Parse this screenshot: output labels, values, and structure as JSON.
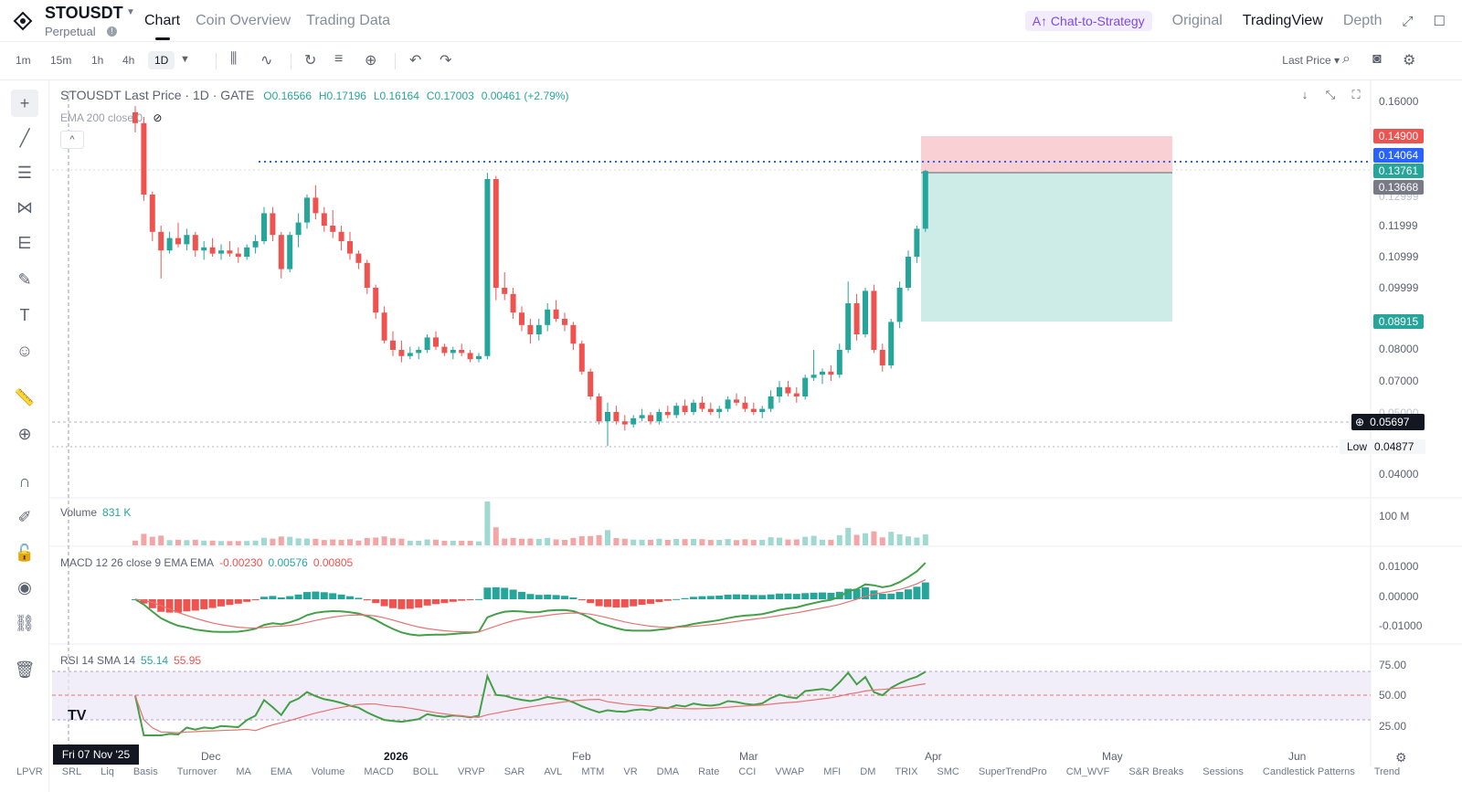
{
  "header": {
    "symbol": "STOUSDT",
    "contract_type": "Perpetual",
    "tabs": [
      {
        "label": "Chart"
      },
      {
        "label": "Coin Overview"
      },
      {
        "label": "Trading Data"
      }
    ],
    "ai_button": "Chat-to-Strategy",
    "view_modes": [
      "Original",
      "TradingView",
      "Depth"
    ]
  },
  "toolbar": {
    "timeframes": [
      "1m",
      "15m",
      "1h",
      "4h",
      "1D"
    ],
    "price_type": "Last Price"
  },
  "legend": {
    "title": "STOUSDT Last Price · 1D · GATE",
    "open": "O0.16566",
    "high": "H0.17196",
    "low": "L0.16164",
    "close": "C0.17003",
    "change": "0.00461 (+2.79%)",
    "ema": "EMA 200 close 0"
  },
  "volume_pane": {
    "label": "Volume",
    "value": "831 K"
  },
  "macd_pane": {
    "label": "MACD 12 26 close 9 EMA EMA",
    "v1": "-0.00230",
    "v2": "0.00576",
    "v3": "0.00805"
  },
  "rsi_pane": {
    "label": "RSI 14 SMA 14",
    "v1": "55.14",
    "v2": "55.95"
  },
  "price_axis": [
    "0.16000",
    "0.11999",
    "0.10999",
    "0.09999",
    "0.08000",
    "0.07000",
    "0.04000"
  ],
  "price_axis_partial": [
    "0.12999",
    "0.05000"
  ],
  "price_tags": {
    "stop": "0.14900",
    "blue": "0.14064",
    "green": "0.13761",
    "gray": "0.13668",
    "target": "0.08915",
    "current": "0.05697",
    "low_label": "Low",
    "low_value": "0.04877"
  },
  "volume_axis": "100 M",
  "macd_axis": [
    "0.01000",
    "0.00000",
    "-0.01000"
  ],
  "rsi_axis": [
    "75.00",
    "50.00",
    "25.00"
  ],
  "time_axis": {
    "labels": [
      "Dec",
      "2026",
      "Feb",
      "Mar",
      "Apr",
      "May",
      "Jun"
    ],
    "crosshair_date": "Fri 07 Nov '25"
  },
  "indicators_bar": [
    "LPVR",
    "SRL",
    "Liq",
    "Basis",
    "Turnover",
    "MA",
    "EMA",
    "Volume",
    "MACD",
    "BOLL",
    "VRVP",
    "SAR",
    "AVL",
    "MTM",
    "VR",
    "DMA",
    "Rate",
    "CCI",
    "VWAP",
    "MFI",
    "DM",
    "TRIX",
    "SMC",
    "SuperTrendPro",
    "CM_WVF",
    "S&R Breaks",
    "Sessions",
    "Candlestick Patterns",
    "Trend"
  ],
  "colors": {
    "up": "#26a69a",
    "down": "#ef5350",
    "accent": "#2962ff",
    "macd_line": "#43a047",
    "signal": "#e57373"
  },
  "chart_data": {
    "type": "candlestick",
    "symbol": "STOUSDT",
    "timeframe": "1D",
    "candles": [
      [
        0.1565,
        0.1585,
        0.15,
        0.153
      ],
      [
        0.153,
        0.155,
        0.128,
        0.13
      ],
      [
        0.13,
        0.131,
        0.115,
        0.118
      ],
      [
        0.118,
        0.12,
        0.103,
        0.112
      ],
      [
        0.112,
        0.118,
        0.111,
        0.116
      ],
      [
        0.116,
        0.121,
        0.113,
        0.114
      ],
      [
        0.114,
        0.119,
        0.112,
        0.117
      ],
      [
        0.117,
        0.118,
        0.11,
        0.112
      ],
      [
        0.112,
        0.115,
        0.109,
        0.113
      ],
      [
        0.113,
        0.116,
        0.11,
        0.111
      ],
      [
        0.111,
        0.114,
        0.109,
        0.112
      ],
      [
        0.112,
        0.115,
        0.11,
        0.111
      ],
      [
        0.111,
        0.113,
        0.108,
        0.11
      ],
      [
        0.11,
        0.114,
        0.109,
        0.113
      ],
      [
        0.113,
        0.117,
        0.111,
        0.115
      ],
      [
        0.115,
        0.126,
        0.114,
        0.124
      ],
      [
        0.124,
        0.126,
        0.115,
        0.117
      ],
      [
        0.117,
        0.118,
        0.103,
        0.106
      ],
      [
        0.106,
        0.118,
        0.105,
        0.117
      ],
      [
        0.117,
        0.124,
        0.113,
        0.121
      ],
      [
        0.121,
        0.13,
        0.119,
        0.129
      ],
      [
        0.129,
        0.133,
        0.122,
        0.124
      ],
      [
        0.124,
        0.126,
        0.118,
        0.12
      ],
      [
        0.12,
        0.125,
        0.116,
        0.118
      ],
      [
        0.118,
        0.12,
        0.112,
        0.115
      ],
      [
        0.115,
        0.118,
        0.109,
        0.111
      ],
      [
        0.111,
        0.112,
        0.106,
        0.108
      ],
      [
        0.108,
        0.109,
        0.098,
        0.1
      ],
      [
        0.1,
        0.101,
        0.09,
        0.092
      ],
      [
        0.092,
        0.094,
        0.082,
        0.083
      ],
      [
        0.083,
        0.086,
        0.078,
        0.08
      ],
      [
        0.08,
        0.083,
        0.076,
        0.078
      ],
      [
        0.078,
        0.081,
        0.077,
        0.079
      ],
      [
        0.079,
        0.081,
        0.077,
        0.08
      ],
      [
        0.08,
        0.085,
        0.079,
        0.084
      ],
      [
        0.084,
        0.086,
        0.08,
        0.081
      ],
      [
        0.081,
        0.082,
        0.078,
        0.079
      ],
      [
        0.079,
        0.081,
        0.077,
        0.08
      ],
      [
        0.08,
        0.082,
        0.078,
        0.079
      ],
      [
        0.079,
        0.08,
        0.076,
        0.077
      ],
      [
        0.077,
        0.079,
        0.076,
        0.078
      ],
      [
        0.078,
        0.137,
        0.077,
        0.135
      ],
      [
        0.135,
        0.136,
        0.096,
        0.1
      ],
      [
        0.1,
        0.105,
        0.096,
        0.098
      ],
      [
        0.098,
        0.1,
        0.09,
        0.092
      ],
      [
        0.092,
        0.094,
        0.086,
        0.088
      ],
      [
        0.088,
        0.09,
        0.082,
        0.085
      ],
      [
        0.085,
        0.09,
        0.083,
        0.088
      ],
      [
        0.088,
        0.095,
        0.086,
        0.093
      ],
      [
        0.093,
        0.096,
        0.089,
        0.09
      ],
      [
        0.09,
        0.092,
        0.086,
        0.088
      ],
      [
        0.088,
        0.089,
        0.08,
        0.082
      ],
      [
        0.082,
        0.083,
        0.072,
        0.073
      ],
      [
        0.073,
        0.074,
        0.064,
        0.065
      ],
      [
        0.065,
        0.066,
        0.056,
        0.057
      ],
      [
        0.057,
        0.063,
        0.049,
        0.06
      ],
      [
        0.06,
        0.062,
        0.056,
        0.057
      ],
      [
        0.057,
        0.059,
        0.054,
        0.056
      ],
      [
        0.056,
        0.059,
        0.055,
        0.058
      ],
      [
        0.058,
        0.061,
        0.057,
        0.059
      ],
      [
        0.059,
        0.06,
        0.056,
        0.057
      ],
      [
        0.057,
        0.061,
        0.056,
        0.06
      ],
      [
        0.06,
        0.062,
        0.058,
        0.059
      ],
      [
        0.059,
        0.063,
        0.058,
        0.062
      ],
      [
        0.062,
        0.064,
        0.059,
        0.06
      ],
      [
        0.06,
        0.064,
        0.059,
        0.063
      ],
      [
        0.063,
        0.065,
        0.06,
        0.061
      ],
      [
        0.061,
        0.063,
        0.059,
        0.06
      ],
      [
        0.06,
        0.062,
        0.058,
        0.061
      ],
      [
        0.061,
        0.065,
        0.06,
        0.064
      ],
      [
        0.064,
        0.066,
        0.062,
        0.063
      ],
      [
        0.063,
        0.065,
        0.06,
        0.061
      ],
      [
        0.061,
        0.063,
        0.059,
        0.06
      ],
      [
        0.06,
        0.062,
        0.058,
        0.061
      ],
      [
        0.061,
        0.067,
        0.06,
        0.065
      ],
      [
        0.065,
        0.07,
        0.063,
        0.068
      ],
      [
        0.068,
        0.07,
        0.065,
        0.066
      ],
      [
        0.066,
        0.068,
        0.063,
        0.065
      ],
      [
        0.065,
        0.072,
        0.064,
        0.071
      ],
      [
        0.071,
        0.08,
        0.07,
        0.072
      ],
      [
        0.072,
        0.074,
        0.069,
        0.073
      ],
      [
        0.073,
        0.075,
        0.07,
        0.072
      ],
      [
        0.072,
        0.082,
        0.071,
        0.08
      ],
      [
        0.08,
        0.102,
        0.079,
        0.095
      ],
      [
        0.095,
        0.098,
        0.083,
        0.085
      ],
      [
        0.085,
        0.1,
        0.084,
        0.099
      ],
      [
        0.099,
        0.101,
        0.079,
        0.08
      ],
      [
        0.08,
        0.082,
        0.073,
        0.075
      ],
      [
        0.075,
        0.09,
        0.074,
        0.089
      ],
      [
        0.089,
        0.102,
        0.087,
        0.1
      ],
      [
        0.1,
        0.112,
        0.099,
        0.11
      ],
      [
        0.11,
        0.12,
        0.108,
        0.119
      ],
      [
        0.119,
        0.138,
        0.118,
        0.1376
      ]
    ],
    "y_range": [
      0.04,
      0.16
    ],
    "risk_reward": {
      "stop": 0.149,
      "entry": 0.13761,
      "target": 0.08915
    }
  }
}
